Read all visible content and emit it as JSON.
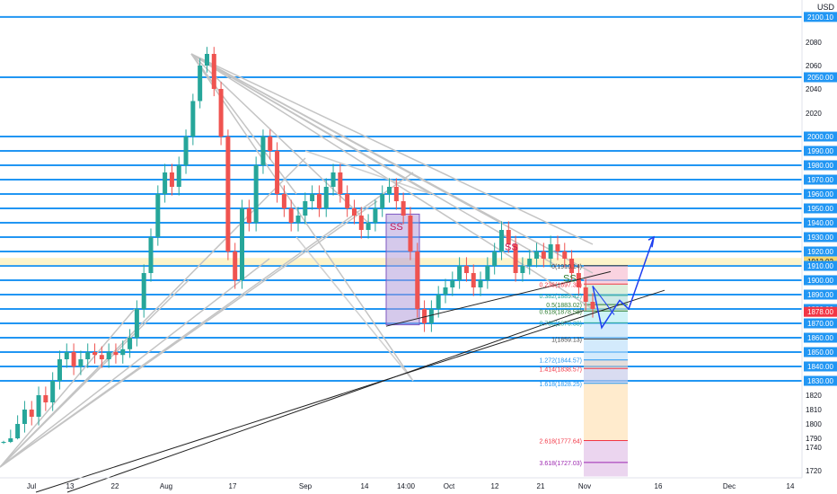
{
  "chart_data": {
    "type": "candlestick",
    "currency_label": "USD",
    "x_tick_labels": [
      "Jul",
      "13",
      "22",
      "Aug",
      "17",
      "Sep",
      "14",
      "14:00",
      "Oct",
      "12",
      "21",
      "Nov",
      "16",
      "Dec",
      "14"
    ],
    "y_tick_labels": [
      1720,
      1740,
      1790,
      1800,
      1810,
      1820,
      1830,
      1840,
      1850,
      1860,
      1870,
      1880,
      1890,
      1900,
      1910,
      1920,
      1930,
      1940,
      1950,
      1960,
      1970,
      1980,
      1990,
      2000,
      2020,
      2040,
      2060,
      2080
    ],
    "highlighted_prices": [
      {
        "value": "2100.10",
        "color": "#2196f3"
      },
      {
        "value": "2050.00",
        "color": "#2196f3"
      },
      {
        "value": "2000.00",
        "color": "#2196f3"
      },
      {
        "value": "1990.00",
        "color": "#2196f3"
      },
      {
        "value": "1980.00",
        "color": "#2196f3"
      },
      {
        "value": "1970.00",
        "color": "#2196f3"
      },
      {
        "value": "1960.00",
        "color": "#2196f3"
      },
      {
        "value": "1950.00",
        "color": "#2196f3"
      },
      {
        "value": "1940.00",
        "color": "#2196f3"
      },
      {
        "value": "1930.00",
        "color": "#2196f3"
      },
      {
        "value": "1920.00",
        "color": "#2196f3"
      },
      {
        "value": "1913.02",
        "color": "#f5d76e"
      },
      {
        "value": "1910.00",
        "color": "#2196f3"
      },
      {
        "value": "1900.00",
        "color": "#2196f3"
      },
      {
        "value": "1890.00",
        "color": "#2196f3"
      },
      {
        "value": "1880.00",
        "color": "#2196f3"
      },
      {
        "value": "1878.00",
        "color": "#f23645"
      },
      {
        "value": "1870.00",
        "color": "#2196f3"
      },
      {
        "value": "1860.00",
        "color": "#2196f3"
      },
      {
        "value": "1850.00",
        "color": "#2196f3"
      },
      {
        "value": "1840.00",
        "color": "#2196f3"
      },
      {
        "value": "1830.00",
        "color": "#2196f3"
      }
    ],
    "horizontal_levels": [
      2100.1,
      2050,
      2000,
      1990,
      1980,
      1970,
      1960,
      1950,
      1940,
      1930,
      1920,
      1910,
      1900,
      1890,
      1880,
      1870,
      1860,
      1850,
      1840,
      1830
    ],
    "current_price_band": 1913.02,
    "annotations": [
      "SS",
      "SS",
      "SS"
    ],
    "fib_labels": [
      {
        "text": "0(1910.14)",
        "value": 1910.14,
        "color": "#444444"
      },
      {
        "text": "0.236(1897.34)",
        "value": 1897.34,
        "color": "#f23645"
      },
      {
        "text": "0.382(1889.42)",
        "value": 1889.42,
        "color": "#26a69a"
      },
      {
        "text": "0.5(1883.02)",
        "value": 1883.02,
        "color": "#2e7d32"
      },
      {
        "text": "0.618(1878.58)",
        "value": 1878.58,
        "color": "#2e7d32"
      },
      {
        "text": "0.786(1870.38)",
        "value": 1870.38,
        "color": "#26a69a"
      },
      {
        "text": "1(1859.13)",
        "value": 1859.13,
        "color": "#444444"
      },
      {
        "text": "1.272(1844.57)",
        "value": 1844.57,
        "color": "#2196f3"
      },
      {
        "text": "1.414(1838.57)",
        "value": 1838.57,
        "color": "#f23645"
      },
      {
        "text": "1.618(1828.25)",
        "value": 1828.25,
        "color": "#2196f3"
      },
      {
        "text": "2.618(1777.64)",
        "value": 1777.64,
        "color": "#f23645"
      },
      {
        "text": "3.618(1727.03)",
        "value": 1727.03,
        "color": "#9c27b0"
      }
    ],
    "series": [
      {
        "name": "",
        "close": [
          1770,
          1790,
          1800,
          1810,
          1805,
          1820,
          1815,
          1830,
          1845,
          1850,
          1840,
          1845,
          1850,
          1848,
          1845,
          1850,
          1848,
          1852,
          1860,
          1880,
          1905,
          1930,
          1960,
          1975,
          1965,
          1980,
          2000,
          2030,
          2060,
          2070,
          2040,
          2000,
          1920,
          1900,
          1950,
          1940,
          1980,
          2000,
          1990,
          1960,
          1950,
          1940,
          1945,
          1955,
          1960,
          1950,
          1965,
          1975,
          1960,
          1950,
          1945,
          1935,
          1940,
          1950,
          1960,
          1965,
          1955,
          1945,
          1920,
          1880,
          1870,
          1880,
          1890,
          1895,
          1900,
          1910,
          1905,
          1895,
          1900,
          1910,
          1920,
          1935,
          1925,
          1905,
          1910,
          1915,
          1920,
          1915,
          1925,
          1920,
          1915,
          1905,
          1895,
          1885,
          1880
        ]
      }
    ]
  }
}
